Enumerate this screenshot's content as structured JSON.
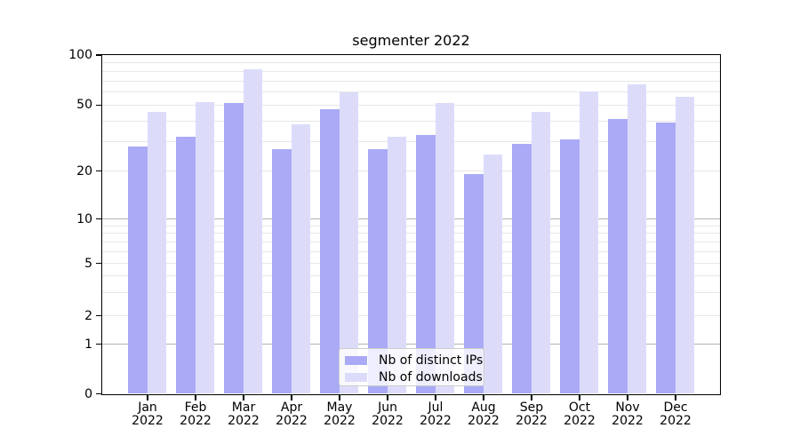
{
  "chart_data": {
    "type": "bar",
    "title": "segmenter 2022",
    "categories": [
      "Jan",
      "Feb",
      "Mar",
      "Apr",
      "May",
      "Jun",
      "Jul",
      "Aug",
      "Sep",
      "Oct",
      "Nov",
      "Dec"
    ],
    "category_year": "2022",
    "series": [
      {
        "name": "Nb of distinct IPs",
        "color": "#aaaaf6",
        "values": [
          28,
          32,
          51,
          27,
          47,
          27,
          33,
          19,
          29,
          31,
          41,
          39
        ]
      },
      {
        "name": "Nb of downloads",
        "color": "#dcdcfa",
        "values": [
          45,
          52,
          82,
          38,
          59,
          32,
          51,
          25,
          45,
          60,
          66,
          56
        ]
      }
    ],
    "yscale": "log-like with 0 baseline",
    "ylim": [
      0,
      100
    ],
    "yticks": [
      0,
      1,
      2,
      5,
      10,
      20,
      50,
      100
    ],
    "grid_major": [
      1,
      10
    ],
    "grid_minor": [
      2,
      3,
      4,
      5,
      6,
      7,
      8,
      9,
      20,
      30,
      40,
      50,
      60,
      70,
      80,
      90
    ],
    "legend_position": "lower center inside plot"
  },
  "legend": {
    "items": [
      {
        "label": "Nb of distinct IPs"
      },
      {
        "label": "Nb of downloads"
      }
    ]
  }
}
